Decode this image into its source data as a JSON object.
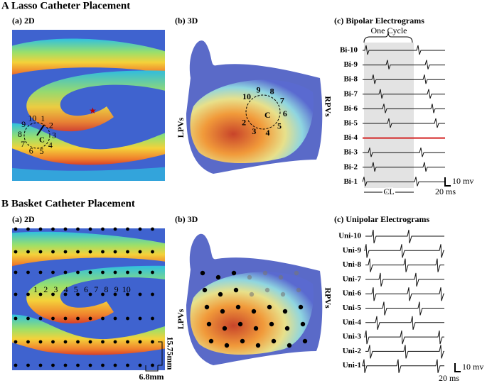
{
  "panel_a": {
    "letter": "A",
    "title": "Lasso Catheter Placement",
    "map2d": {
      "label": "(a) 2D",
      "electrodes": [
        "1",
        "2",
        "3",
        "4",
        "5",
        "6",
        "7",
        "8",
        "9",
        "10"
      ],
      "center": "C"
    },
    "map3d": {
      "label": "(b) 3D",
      "left": "LPVs",
      "right": "RPVs",
      "electrodes": [
        "2",
        "3",
        "4",
        "5",
        "6",
        "7",
        "8",
        "9",
        "10"
      ],
      "center": "C"
    },
    "traces": {
      "label": "(c) Bipolar Electrograms",
      "cycle": "One Cycle",
      "channels": [
        "Bi-10",
        "Bi-9",
        "Bi-8",
        "Bi-7",
        "Bi-6",
        "Bi-5",
        "Bi-4",
        "Bi-3",
        "Bi-2",
        "Bi-1"
      ],
      "voltage_scale": "10 mv",
      "time_scale": "20 ms",
      "cl": "CL"
    }
  },
  "panel_b": {
    "letter": "B",
    "title": "Basket Catheter Placement",
    "map2d": {
      "label": "(a) 2D",
      "electrodes": [
        "1",
        "2",
        "3",
        "4",
        "5",
        "6",
        "7",
        "8",
        "9",
        "10"
      ],
      "row_spacing": "15.75mm",
      "col_spacing": "6.8mm"
    },
    "map3d": {
      "label": "(b) 3D",
      "left": "LPVs",
      "right": "RPVs"
    },
    "traces": {
      "label": "(c) Unipolar Electrograms",
      "channels": [
        "Uni-10",
        "Uni-9",
        "Uni-8",
        "Uni-7",
        "Uni-6",
        "Uni-5",
        "Uni-4",
        "Uni-3",
        "Uni-2",
        "Uni-1"
      ],
      "voltage_scale": "10 mv",
      "time_scale": "20 ms"
    }
  }
}
